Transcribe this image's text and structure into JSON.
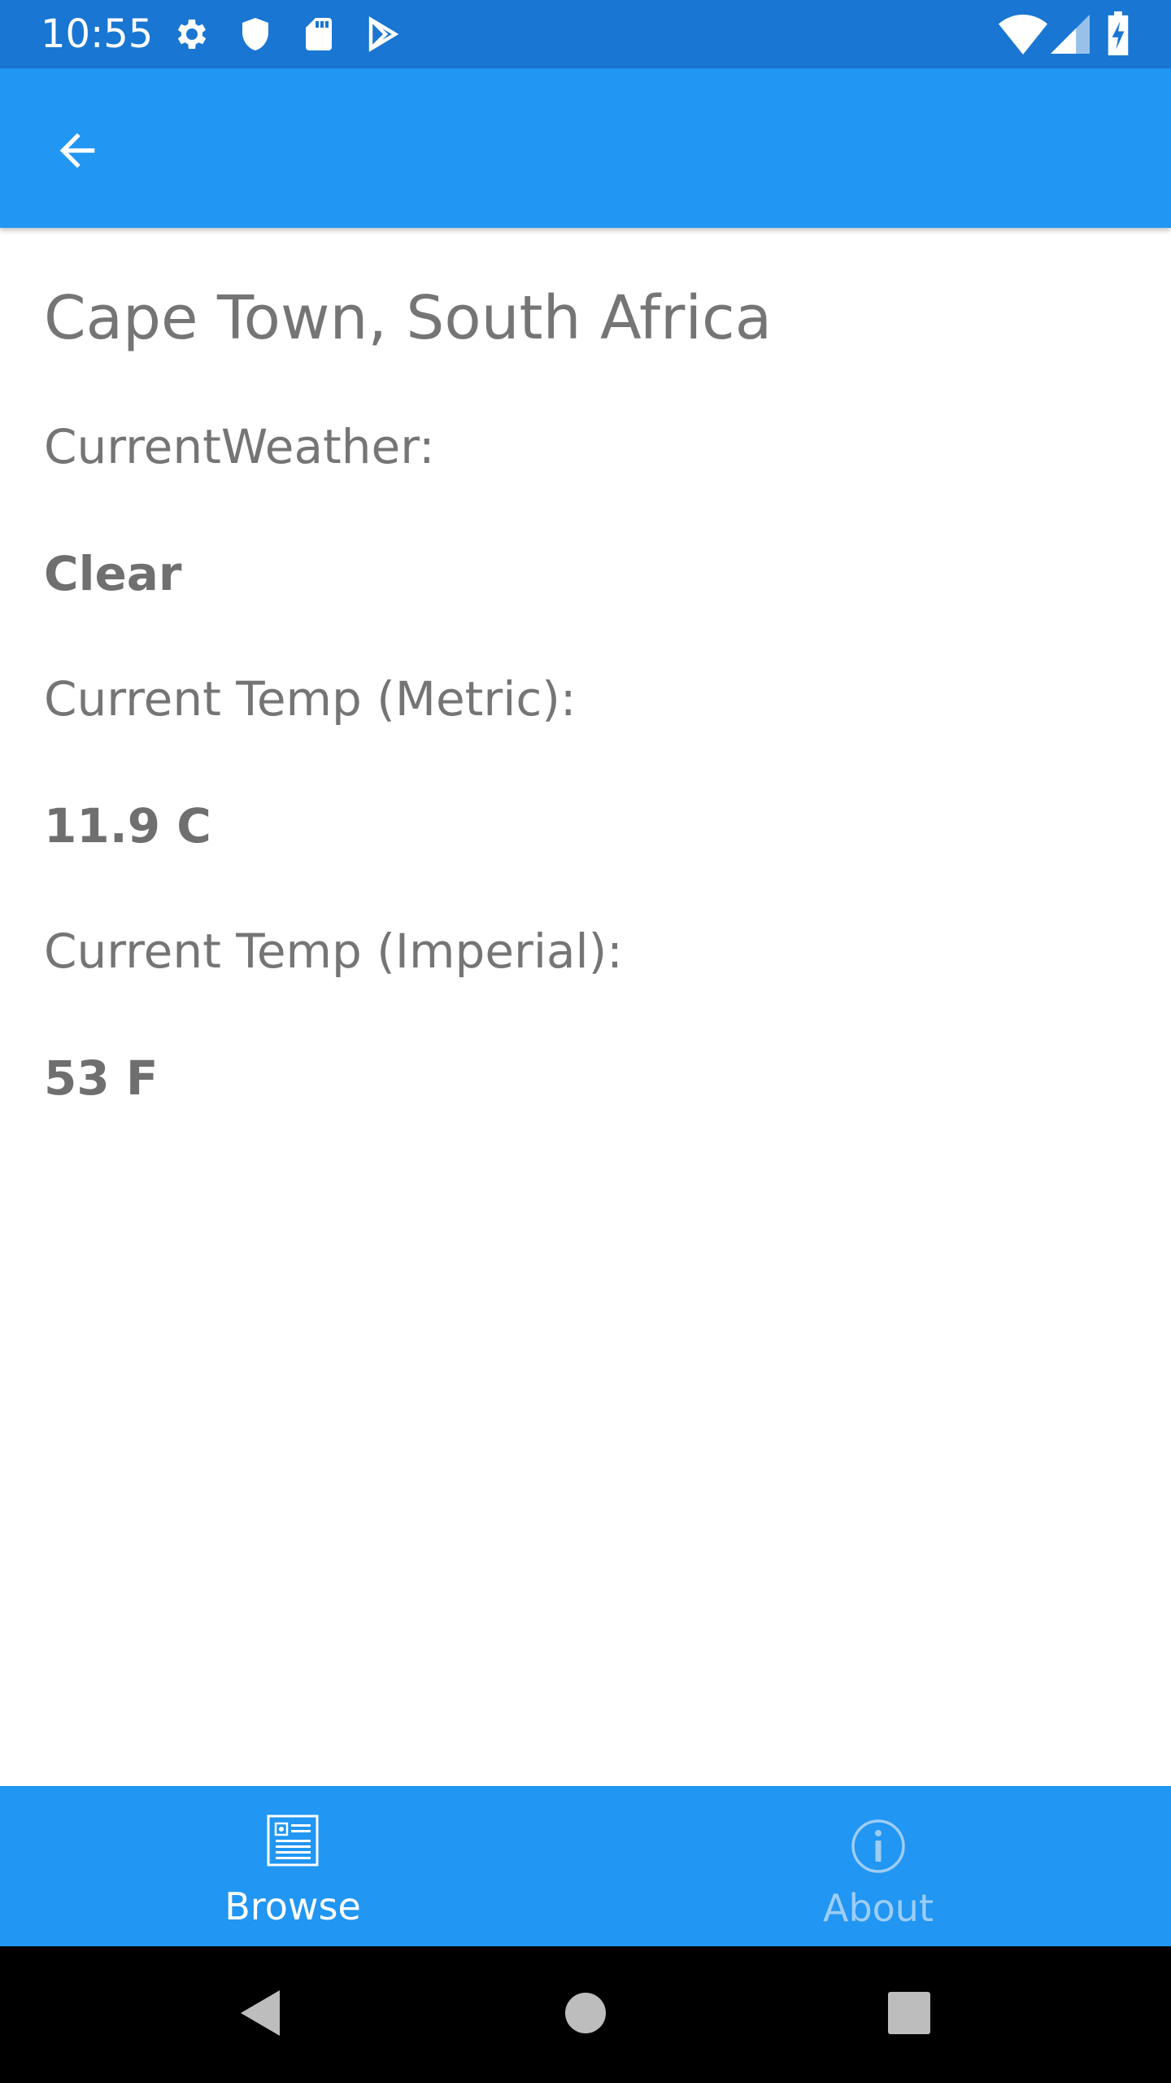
{
  "status_bar": {
    "time": "10:55",
    "left_icons": [
      "gear-icon",
      "shield-icon",
      "sd-card-icon",
      "play-store-icon"
    ],
    "right_icons": [
      "wifi-icon",
      "cell-signal-icon",
      "battery-charging-icon"
    ]
  },
  "app_bar": {
    "back_icon": "arrow-left-icon"
  },
  "weather": {
    "city": "Cape Town, South Africa",
    "current_weather_label": "CurrentWeather:",
    "current_weather_value": "Clear",
    "metric_label": "Current Temp (Metric):",
    "metric_value": "11.9 C",
    "imperial_label": "Current Temp (Imperial):",
    "imperial_value": "53 F"
  },
  "tabs": [
    {
      "label": "Browse",
      "icon": "browse-list-icon",
      "active": true
    },
    {
      "label": "About",
      "icon": "info-icon",
      "active": false
    }
  ],
  "nav_bar": {
    "buttons": [
      "back-triangle-icon",
      "home-circle-icon",
      "recents-square-icon"
    ]
  },
  "colors": {
    "status_bar": "#1976D2",
    "app_bar": "#2196F3",
    "text": "#757575",
    "inactive_tab": "#9dcdf6"
  }
}
